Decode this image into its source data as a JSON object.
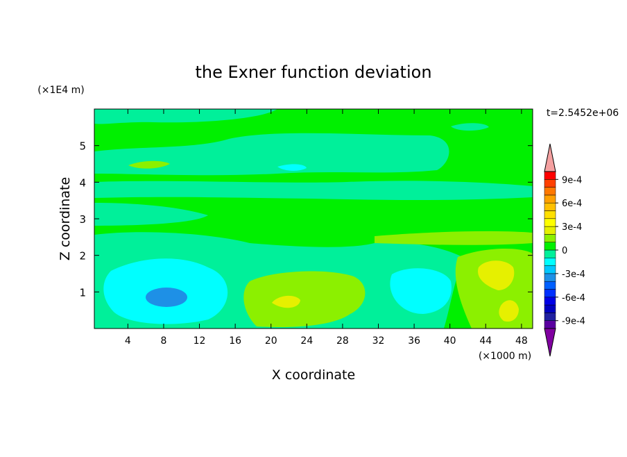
{
  "chart_data": {
    "type": "contour",
    "title": "the Exner function deviation",
    "xlabel": "X coordinate",
    "ylabel": "Z coordinate",
    "x_unit": "(×1000 m)",
    "y_unit": "(×1E4 m)",
    "annotation": "t=2.5452e+06",
    "xlim": [
      0.25,
      49.25
    ],
    "ylim": [
      0,
      6
    ],
    "xticks": [
      4,
      8,
      12,
      16,
      20,
      24,
      28,
      32,
      36,
      40,
      44,
      48
    ],
    "yticks": [
      1,
      2,
      3,
      4,
      5
    ],
    "colorbar": {
      "bounds": [
        -0.001,
        -0.0009,
        -0.0008,
        -0.0007,
        -0.0006,
        -0.0005,
        -0.0004,
        -0.0003,
        -0.0002,
        -0.0001,
        0,
        0.0001,
        0.0002,
        0.0003,
        0.0004,
        0.0005,
        0.0006,
        0.0007,
        0.0008,
        0.0009,
        0.001
      ],
      "colors": [
        "#5a00a0",
        "#2020a0",
        "#0000c0",
        "#0000e6",
        "#0030ff",
        "#0060ff",
        "#1e90e6",
        "#00c8ff",
        "#00ffff",
        "#00f09a",
        "#00f000",
        "#8cf000",
        "#e6f000",
        "#ffff00",
        "#ffe000",
        "#ffc000",
        "#ffa000",
        "#ff7800",
        "#ff4000",
        "#ff0000"
      ],
      "under_color": "#8000a0",
      "over_color": "#f4a0a0",
      "ticks": [
        {
          "value": -0.0009,
          "label": "-9e-4"
        },
        {
          "value": -0.0006,
          "label": "-6e-4"
        },
        {
          "value": -0.0003,
          "label": "-3e-4"
        },
        0,
        {
          "value": 0.0003,
          "label": "3e-4"
        },
        {
          "value": 0.0006,
          "label": "6e-4"
        },
        {
          "value": 0.0009,
          "label": "9e-4"
        }
      ]
    }
  }
}
